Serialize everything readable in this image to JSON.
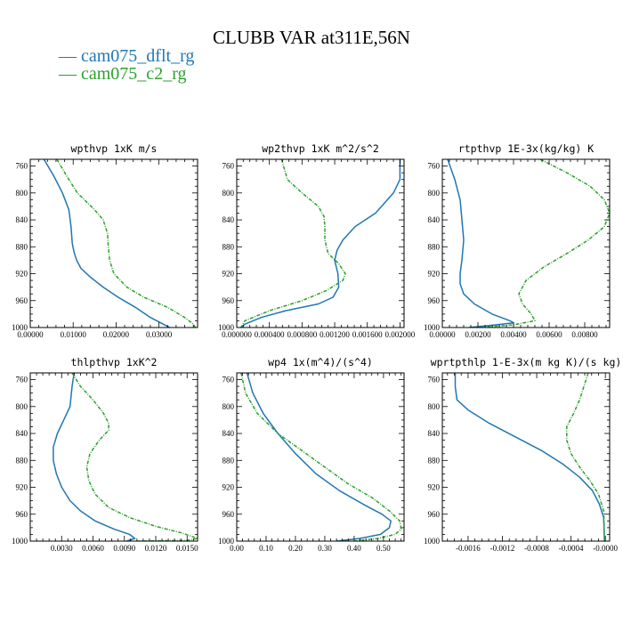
{
  "title": "CLUBB VAR at311E,56N",
  "legend": [
    {
      "label": "— cam075_dflt_rg",
      "color": "#1f77b4"
    },
    {
      "label": "— cam075_c2_rg",
      "color": "#2ca02c"
    }
  ],
  "chart_data": [
    {
      "type": "line",
      "title": "wpthvp   1xK m/s",
      "xlim": [
        0.0,
        0.039
      ],
      "ylim": [
        1000,
        750
      ],
      "grid": false,
      "xticks": [
        0.0,
        0.01,
        0.02,
        0.03
      ],
      "xticklabels": [
        "0.00000",
        "0.01000",
        "0.02000",
        "0.03000"
      ],
      "yticks": [
        760,
        800,
        840,
        880,
        920,
        960,
        1000
      ],
      "yticklabels": [
        "760",
        "800",
        "840",
        "880",
        "920",
        "960",
        "1000"
      ],
      "series": [
        {
          "color": "#1f77b4",
          "dash": "solid",
          "x": [
            0.0032,
            0.0055,
            0.0075,
            0.009,
            0.0095,
            0.0098,
            0.0102,
            0.0108,
            0.0118,
            0.014,
            0.017,
            0.0205,
            0.0245,
            0.028,
            0.031,
            0.0325
          ],
          "y": [
            750,
            775,
            800,
            825,
            850,
            875,
            888,
            900,
            912,
            925,
            940,
            955,
            970,
            985,
            995,
            1000
          ]
        },
        {
          "color": "#2ca02c",
          "dash": "dashed",
          "x": [
            0.0062,
            0.0085,
            0.011,
            0.015,
            0.017,
            0.018,
            0.0182,
            0.0185,
            0.0195,
            0.0225,
            0.0265,
            0.032,
            0.036,
            0.038,
            0.0385
          ],
          "y": [
            750,
            775,
            800,
            825,
            840,
            860,
            880,
            900,
            920,
            940,
            955,
            970,
            985,
            995,
            1000
          ]
        }
      ]
    },
    {
      "type": "line",
      "title": "wp2thvp   1xK m^2/s^2",
      "xlim": [
        0.0,
        0.00205
      ],
      "ylim": [
        1000,
        750
      ],
      "grid": false,
      "xticks": [
        0.0,
        0.0004,
        0.0008,
        0.0012,
        0.0016,
        0.002
      ],
      "xticklabels": [
        "0.000000",
        "0.000400",
        "0.000800",
        "0.001200",
        "0.001600",
        "0.002000"
      ],
      "yticks": [
        760,
        800,
        840,
        880,
        920,
        960,
        1000
      ],
      "yticklabels": [
        "760",
        "800",
        "840",
        "880",
        "920",
        "960",
        "1000"
      ],
      "series": [
        {
          "color": "#1f77b4",
          "dash": "solid",
          "x": [
            0.002,
            0.002,
            0.00192,
            0.0017,
            0.00145,
            0.0013,
            0.00123,
            0.0012,
            0.00124,
            0.00125,
            0.00118,
            0.001,
            0.0006,
            0.0003,
            0.0001,
            5e-05
          ],
          "y": [
            750,
            780,
            800,
            830,
            850,
            870,
            885,
            900,
            920,
            940,
            955,
            965,
            975,
            985,
            995,
            1000
          ]
        },
        {
          "color": "#2ca02c",
          "dash": "dashed",
          "x": [
            0.00055,
            0.00062,
            0.0008,
            0.001,
            0.00107,
            0.00108,
            0.00108,
            0.00112,
            0.00125,
            0.00133,
            0.0013,
            0.0011,
            0.0008,
            0.0004,
            0.0001,
            5e-05
          ],
          "y": [
            750,
            780,
            800,
            820,
            835,
            850,
            870,
            890,
            905,
            920,
            930,
            945,
            960,
            975,
            990,
            1000
          ]
        }
      ]
    },
    {
      "type": "line",
      "title": "rtpthvp   1E-3x(kg/kg) K",
      "xlim": [
        0.0,
        0.0094
      ],
      "ylim": [
        1000,
        750
      ],
      "grid": false,
      "xticks": [
        0.0,
        0.002,
        0.004,
        0.006,
        0.008
      ],
      "xticklabels": [
        "0.00000",
        "0.00200",
        "0.00400",
        "0.00600",
        "0.00800"
      ],
      "yticks": [
        760,
        800,
        840,
        880,
        920,
        960,
        1000
      ],
      "yticklabels": [
        "760",
        "800",
        "840",
        "880",
        "920",
        "960",
        "1000"
      ],
      "series": [
        {
          "color": "#1f77b4",
          "dash": "solid",
          "x": [
            0.0003,
            0.0007,
            0.001,
            0.0011,
            0.0012,
            0.0011,
            0.001,
            0.001,
            0.0012,
            0.0018,
            0.0028,
            0.0038,
            0.004,
            0.003,
            0.0015
          ],
          "y": [
            750,
            780,
            810,
            840,
            870,
            900,
            920,
            935,
            950,
            965,
            980,
            990,
            993,
            996,
            1000
          ]
        },
        {
          "color": "#2ca02c",
          "dash": "dashed",
          "x": [
            0.0055,
            0.007,
            0.0083,
            0.0091,
            0.0094,
            0.0091,
            0.0082,
            0.007,
            0.0057,
            0.0047,
            0.0043,
            0.0045,
            0.005,
            0.0052,
            0.004,
            0.002
          ],
          "y": [
            750,
            770,
            790,
            810,
            830,
            850,
            870,
            890,
            910,
            930,
            950,
            965,
            980,
            990,
            996,
            1000
          ]
        }
      ]
    },
    {
      "type": "line",
      "title": "thlpthvp   1xK^2",
      "xlim": [
        0.0,
        0.016
      ],
      "ylim": [
        1000,
        750
      ],
      "grid": false,
      "xticks": [
        0.003,
        0.006,
        0.009,
        0.012,
        0.015
      ],
      "xticklabels": [
        "0.0030",
        "0.0060",
        "0.0090",
        "0.0120",
        "0.0150"
      ],
      "yticks": [
        760,
        800,
        840,
        880,
        920,
        960,
        1000
      ],
      "yticklabels": [
        "760",
        "800",
        "840",
        "880",
        "920",
        "960",
        "1000"
      ],
      "series": [
        {
          "color": "#1f77b4",
          "dash": "solid",
          "x": [
            0.0042,
            0.004,
            0.0038,
            0.0032,
            0.0026,
            0.0022,
            0.0022,
            0.0025,
            0.003,
            0.0038,
            0.0048,
            0.0062,
            0.008,
            0.0095,
            0.01,
            0.0092
          ],
          "y": [
            750,
            770,
            800,
            820,
            840,
            860,
            880,
            900,
            920,
            940,
            955,
            970,
            982,
            990,
            996,
            1000
          ]
        },
        {
          "color": "#2ca02c",
          "dash": "dashed",
          "x": [
            0.004,
            0.0048,
            0.006,
            0.007,
            0.0075,
            0.0075,
            0.0066,
            0.0057,
            0.0054,
            0.0056,
            0.0062,
            0.0075,
            0.0095,
            0.012,
            0.0145,
            0.016,
            0.015,
            0.01
          ],
          "y": [
            750,
            770,
            790,
            810,
            825,
            835,
            850,
            870,
            890,
            910,
            930,
            950,
            965,
            978,
            988,
            996,
            999,
            1000
          ]
        }
      ]
    },
    {
      "type": "line",
      "title": "wp4   1x(m^4)/(s^4)",
      "xlim": [
        0.0,
        0.57
      ],
      "ylim": [
        1000,
        750
      ],
      "grid": false,
      "xticks": [
        0.0,
        0.1,
        0.2,
        0.3,
        0.4,
        0.5
      ],
      "xticklabels": [
        "0.00",
        "0.10",
        "0.20",
        "0.30",
        "0.40",
        "0.50"
      ],
      "yticks": [
        760,
        800,
        840,
        880,
        920,
        960,
        1000
      ],
      "yticklabels": [
        "760",
        "800",
        "840",
        "880",
        "920",
        "960",
        "1000"
      ],
      "series": [
        {
          "color": "#1f77b4",
          "dash": "solid",
          "x": [
            0.035,
            0.055,
            0.09,
            0.14,
            0.2,
            0.27,
            0.35,
            0.43,
            0.495,
            0.525,
            0.52,
            0.49,
            0.42,
            0.34
          ],
          "y": [
            750,
            780,
            810,
            840,
            870,
            900,
            925,
            945,
            960,
            970,
            980,
            990,
            996,
            1000
          ]
        },
        {
          "color": "#2ca02c",
          "dash": "dashed",
          "x": [
            0.015,
            0.03,
            0.07,
            0.14,
            0.22,
            0.3,
            0.38,
            0.46,
            0.52,
            0.555,
            0.56,
            0.54,
            0.48,
            0.4
          ],
          "y": [
            750,
            780,
            810,
            840,
            865,
            890,
            915,
            935,
            955,
            970,
            982,
            990,
            996,
            1000
          ]
        }
      ]
    },
    {
      "type": "line",
      "title": "wprtpthlp   1-E-3x(m kg K)/(s kg)",
      "xlim": [
        -0.0019,
        5e-05
      ],
      "ylim": [
        1000,
        750
      ],
      "grid": false,
      "xticks": [
        -0.0016,
        -0.0012,
        -0.0008,
        -0.0004,
        0.0
      ],
      "xticklabels": [
        "-0.0016",
        "-0.0012",
        "-0.0008",
        "-0.0004",
        "-0.0000"
      ],
      "yticks": [
        760,
        800,
        840,
        880,
        920,
        960,
        1000
      ],
      "yticklabels": [
        "760",
        "800",
        "840",
        "880",
        "920",
        "960",
        "1000"
      ],
      "series": [
        {
          "color": "#1f77b4",
          "dash": "solid",
          "x": [
            -0.00175,
            -0.00175,
            -0.00173,
            -0.0016,
            -0.00135,
            -0.00105,
            -0.00075,
            -0.0005,
            -0.0003,
            -0.00015,
            -7e-05,
            -2e-05,
            -1e-05
          ],
          "y": [
            750,
            770,
            790,
            805,
            825,
            845,
            865,
            885,
            905,
            925,
            945,
            965,
            1000
          ]
        },
        {
          "color": "#2ca02c",
          "dash": "dashed",
          "x": [
            -0.0002,
            -0.00025,
            -0.0003,
            -0.00037,
            -0.00045,
            -0.00045,
            -0.0004,
            -0.0003,
            -0.00018,
            -8e-05,
            -2e-05,
            -1e-05
          ],
          "y": [
            750,
            770,
            790,
            810,
            830,
            850,
            870,
            890,
            910,
            930,
            955,
            1000
          ]
        }
      ]
    }
  ]
}
